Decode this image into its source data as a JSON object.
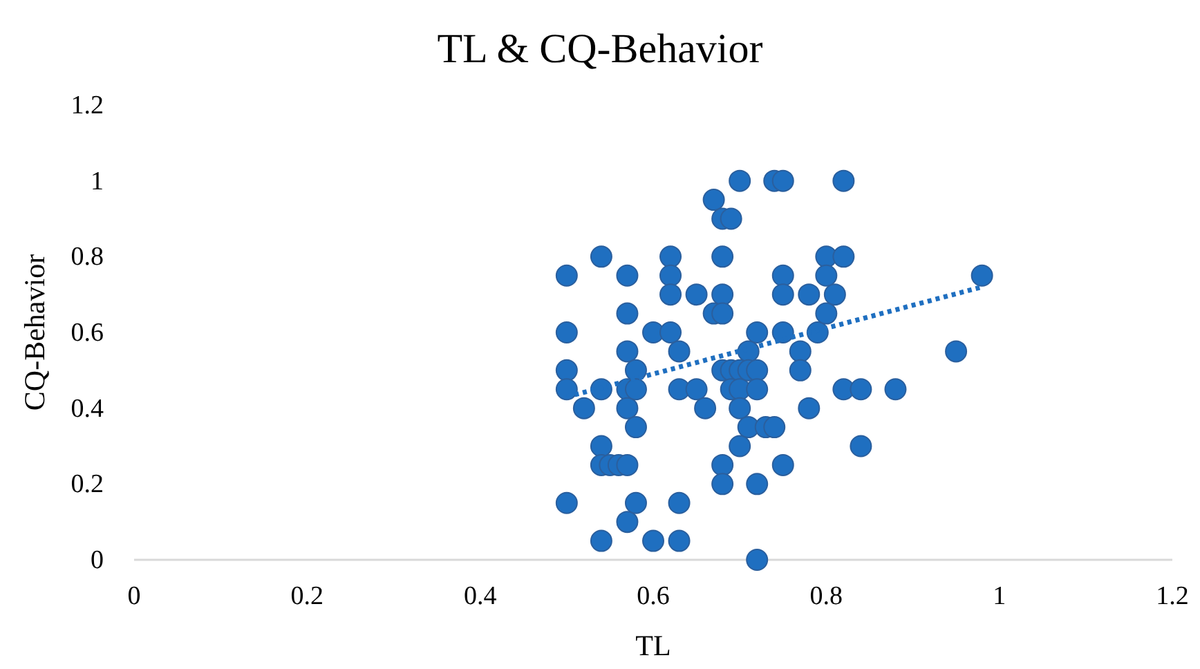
{
  "chart_data": {
    "type": "scatter",
    "title": "TL & CQ-Behavior",
    "xlabel": "TL",
    "ylabel": "CQ-Behavior",
    "xlim": [
      0,
      1.2
    ],
    "xticks": [
      0,
      0.2,
      0.4,
      0.6,
      0.8,
      1,
      1.2
    ],
    "ylim": [
      0,
      1.2
    ],
    "yticks": [
      0,
      0.2,
      0.4,
      0.6,
      0.8,
      1,
      1.2
    ],
    "grid": false,
    "series": [
      {
        "color": "#1f6fc0",
        "marker": "circle",
        "x": [
          0.5,
          0.5,
          0.5,
          0.5,
          0.5,
          0.52,
          0.54,
          0.54,
          0.54,
          0.54,
          0.54,
          0.55,
          0.56,
          0.57,
          0.57,
          0.57,
          0.57,
          0.57,
          0.57,
          0.57,
          0.58,
          0.58,
          0.58,
          0.58,
          0.6,
          0.6,
          0.62,
          0.62,
          0.62,
          0.62,
          0.63,
          0.63,
          0.63,
          0.63,
          0.65,
          0.65,
          0.66,
          0.67,
          0.67,
          0.68,
          0.68,
          0.68,
          0.68,
          0.68,
          0.68,
          0.68,
          0.69,
          0.69,
          0.69,
          0.7,
          0.7,
          0.7,
          0.7,
          0.7,
          0.71,
          0.71,
          0.71,
          0.72,
          0.72,
          0.72,
          0.72,
          0.72,
          0.73,
          0.74,
          0.74,
          0.75,
          0.75,
          0.75,
          0.75,
          0.75,
          0.77,
          0.77,
          0.78,
          0.78,
          0.79,
          0.8,
          0.8,
          0.8,
          0.81,
          0.82,
          0.82,
          0.82,
          0.84,
          0.84,
          0.88,
          0.95,
          0.98
        ],
        "values": [
          0.75,
          0.6,
          0.5,
          0.45,
          0.15,
          0.4,
          0.8,
          0.45,
          0.3,
          0.25,
          0.05,
          0.25,
          0.25,
          0.75,
          0.65,
          0.55,
          0.45,
          0.4,
          0.25,
          0.1,
          0.5,
          0.45,
          0.35,
          0.15,
          0.6,
          0.05,
          0.8,
          0.75,
          0.7,
          0.6,
          0.55,
          0.45,
          0.15,
          0.05,
          0.7,
          0.45,
          0.4,
          0.95,
          0.65,
          0.9,
          0.8,
          0.7,
          0.65,
          0.5,
          0.25,
          0.2,
          0.9,
          0.5,
          0.45,
          1,
          0.5,
          0.45,
          0.4,
          0.3,
          0.55,
          0.5,
          0.35,
          0.6,
          0.5,
          0.45,
          0.2,
          0,
          0.35,
          1,
          0.35,
          1,
          0.75,
          0.7,
          0.6,
          0.25,
          0.55,
          0.5,
          0.7,
          0.4,
          0.6,
          0.8,
          0.75,
          0.65,
          0.7,
          1,
          0.8,
          0.45,
          0.45,
          0.3,
          0.45,
          0.55,
          0.75
        ]
      },
      {
        "type": "line",
        "color": "#1f6fc0",
        "line_style": "dotted",
        "marker": "none",
        "x": [
          0.5,
          0.98
        ],
        "values": [
          0.43,
          0.72
        ]
      }
    ]
  }
}
